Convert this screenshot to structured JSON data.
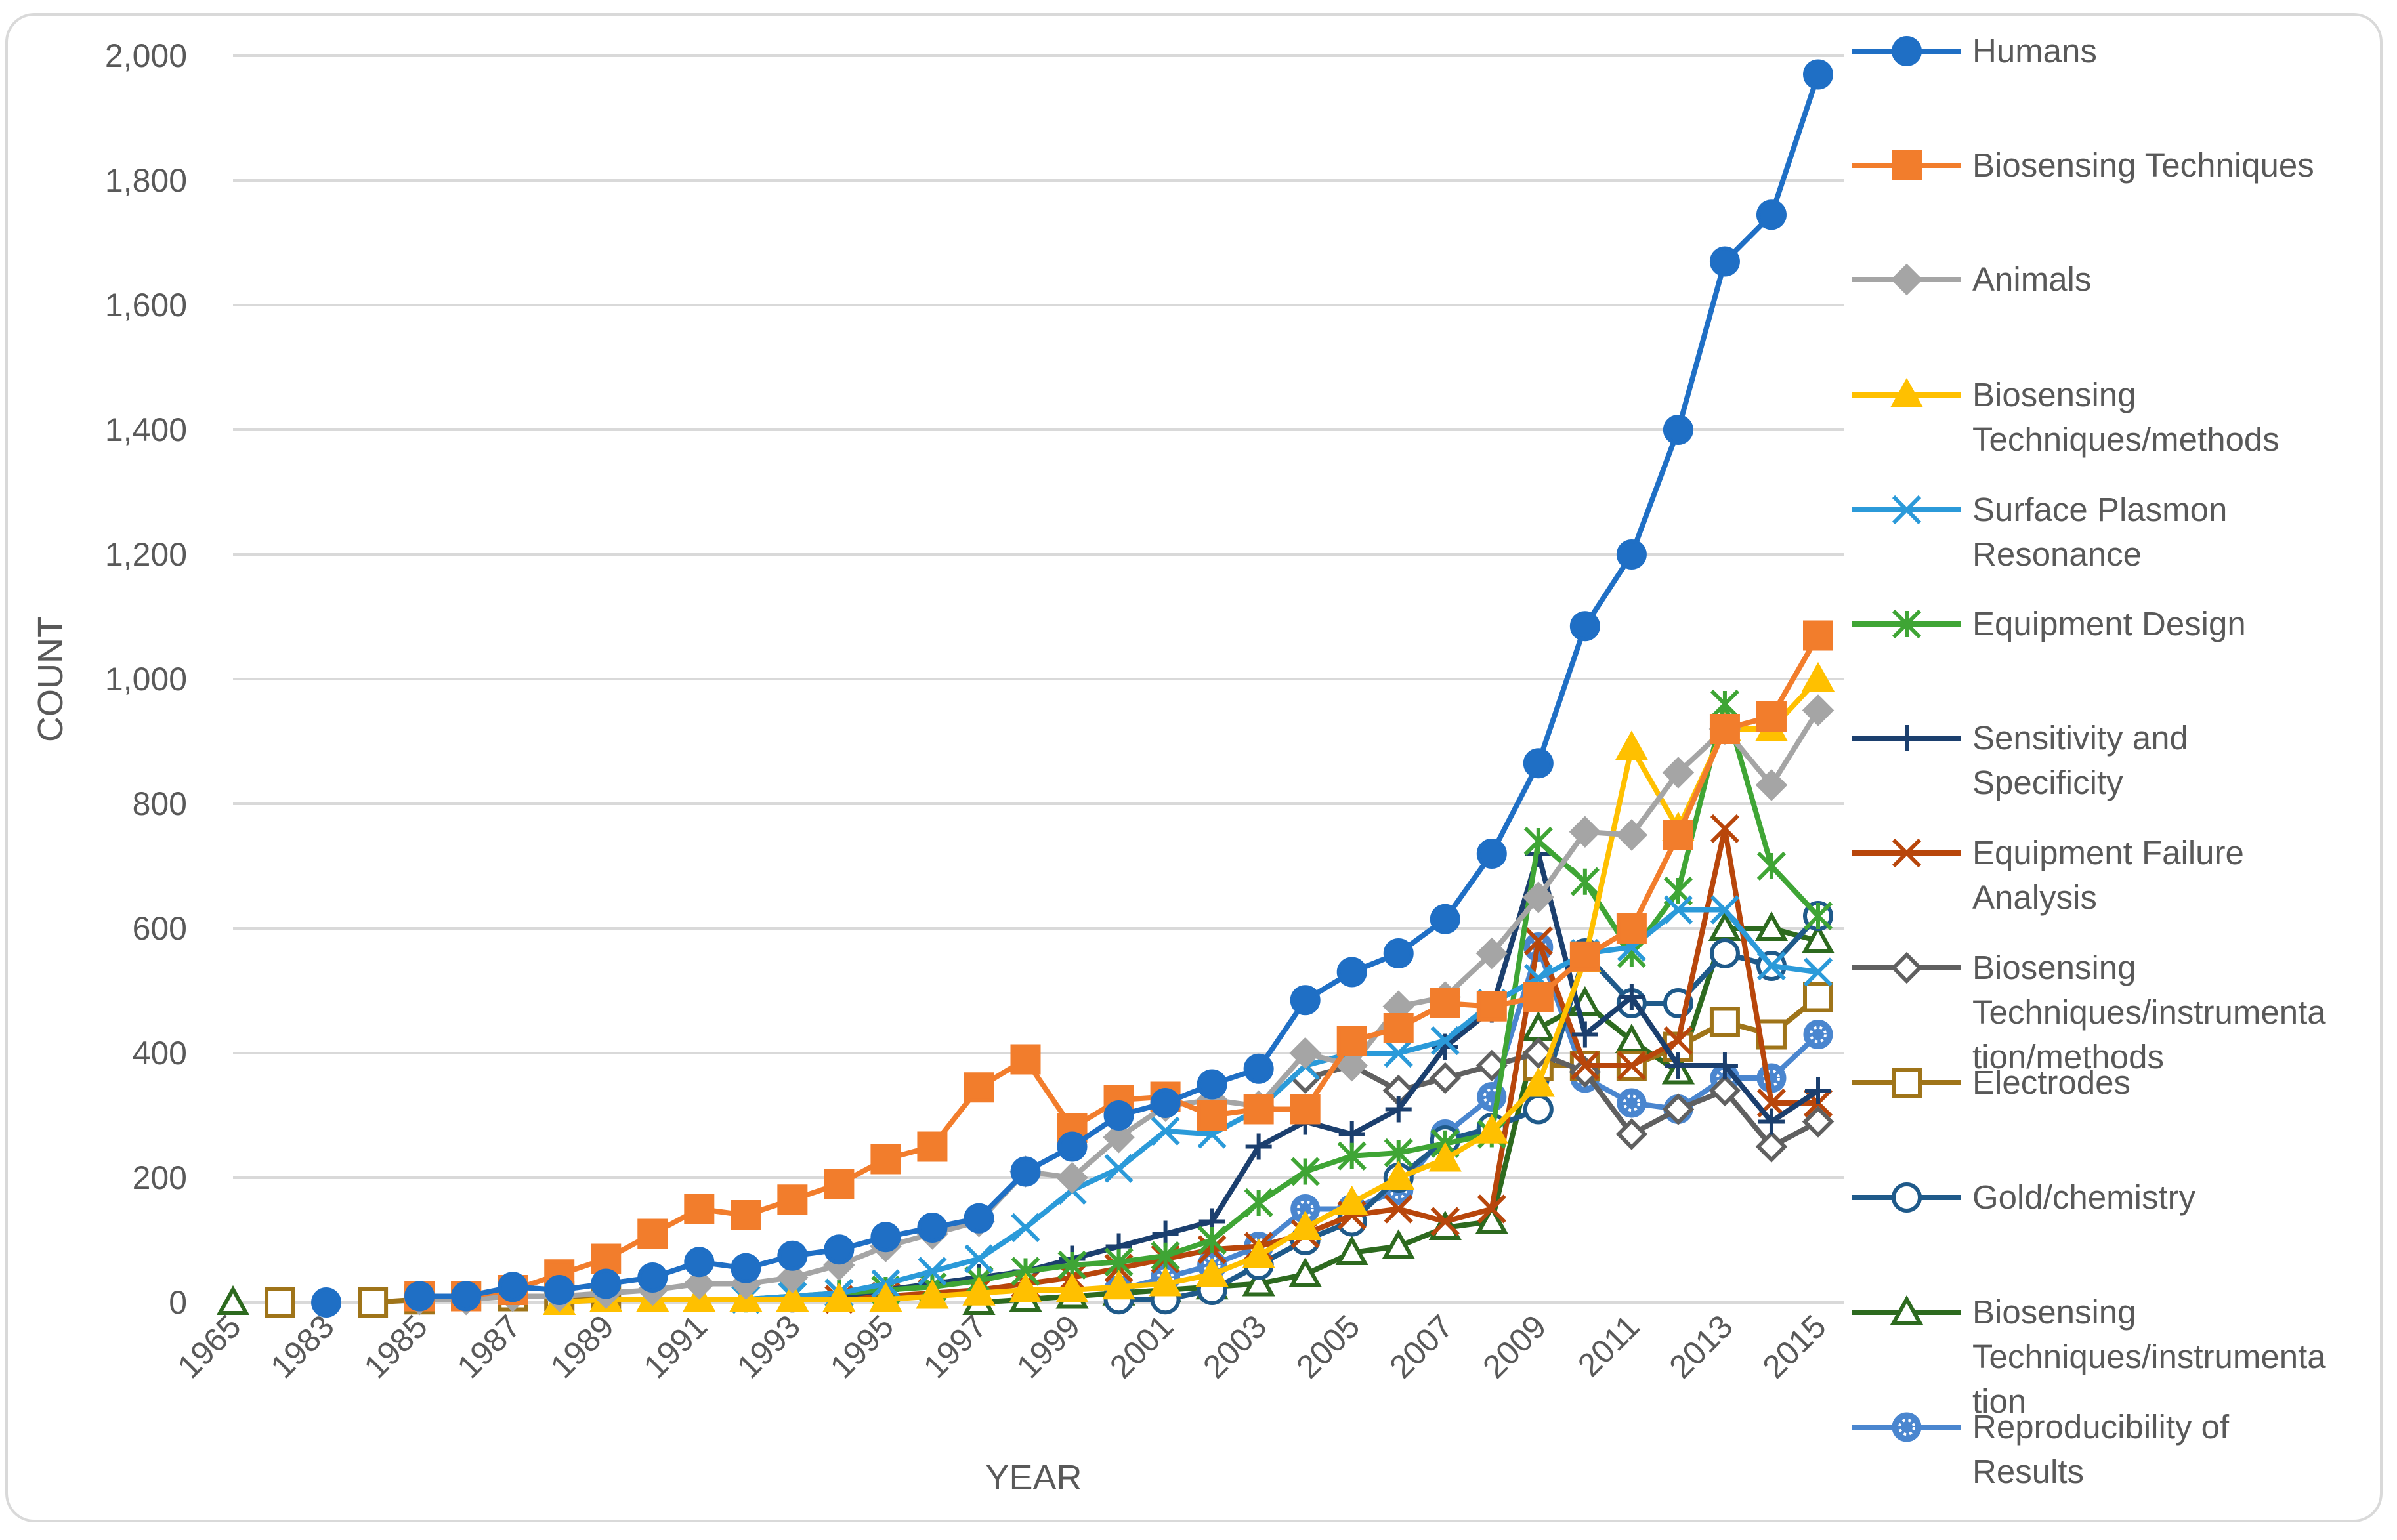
{
  "chart_data": {
    "type": "line",
    "title": "",
    "xlabel": "YEAR",
    "ylabel": "COUNT",
    "ylim": [
      0,
      2000
    ],
    "yticks": [
      0,
      200,
      400,
      600,
      800,
      1000,
      1200,
      1400,
      1600,
      1800,
      2000
    ],
    "ytick_labels": [
      "0",
      "200",
      "400",
      "600",
      "800",
      "1,000",
      "1,200",
      "1,400",
      "1,600",
      "1,800",
      "2,000"
    ],
    "x": [
      "1965",
      "1982",
      "1983",
      "1984",
      "1985",
      "1986",
      "1987",
      "1988",
      "1989",
      "1990",
      "1991",
      "1992",
      "1993",
      "1994",
      "1995",
      "1996",
      "1997",
      "1998",
      "1999",
      "2000",
      "2001",
      "2002",
      "2003",
      "2004",
      "2005",
      "2006",
      "2007",
      "2008",
      "2009",
      "2010",
      "2011",
      "2012",
      "2013",
      "2014",
      "2015"
    ],
    "x_tick_labels": [
      "1965",
      "1983",
      "1985",
      "1987",
      "1989",
      "1991",
      "1993",
      "1995",
      "1997",
      "1999",
      "2001",
      "2003",
      "2005",
      "2007",
      "2009",
      "2011",
      "2013",
      "2015"
    ],
    "grid": true,
    "legend_position": "right",
    "series": [
      {
        "name": "Humans",
        "color": "#1f6fc5",
        "marker": "circle",
        "filled": true,
        "values": [
          null,
          null,
          0,
          null,
          10,
          10,
          25,
          20,
          30,
          40,
          65,
          55,
          75,
          85,
          105,
          120,
          135,
          210,
          250,
          300,
          320,
          350,
          375,
          485,
          530,
          560,
          615,
          720,
          865,
          1085,
          1200,
          1400,
          1670,
          1745,
          1970
        ]
      },
      {
        "name": "Biosensing Techniques",
        "color": "#f27d2c",
        "marker": "square",
        "filled": true,
        "values": [
          null,
          null,
          null,
          null,
          10,
          10,
          20,
          45,
          70,
          110,
          150,
          140,
          165,
          190,
          230,
          250,
          345,
          390,
          280,
          325,
          330,
          300,
          310,
          310,
          420,
          440,
          480,
          475,
          490,
          555,
          600,
          750,
          920,
          940,
          1070
        ]
      },
      {
        "name": "Animals",
        "color": "#a5a5a5",
        "marker": "diamond",
        "filled": true,
        "values": [
          null,
          null,
          null,
          null,
          5,
          5,
          10,
          10,
          15,
          20,
          30,
          30,
          40,
          60,
          90,
          110,
          130,
          210,
          200,
          265,
          315,
          325,
          315,
          400,
          380,
          475,
          490,
          560,
          650,
          755,
          750,
          850,
          920,
          830,
          950
        ]
      },
      {
        "name": "Biosensing Techniques/methods",
        "color": "#ffc000",
        "marker": "triangle",
        "filled": true,
        "values": [
          null,
          null,
          null,
          null,
          null,
          null,
          null,
          0,
          5,
          5,
          5,
          5,
          5,
          5,
          5,
          10,
          15,
          20,
          20,
          25,
          30,
          45,
          75,
          120,
          160,
          200,
          230,
          275,
          350,
          550,
          890,
          760,
          920,
          920,
          1000
        ]
      },
      {
        "name": "Surface Plasmon Resonance",
        "color": "#2b9ad9",
        "marker": "x",
        "values": [
          null,
          null,
          null,
          null,
          null,
          null,
          null,
          null,
          null,
          null,
          null,
          5,
          10,
          15,
          30,
          50,
          70,
          120,
          180,
          215,
          275,
          270,
          310,
          380,
          400,
          400,
          420,
          480,
          520,
          560,
          570,
          630,
          630,
          540,
          530
        ]
      },
      {
        "name": "Equipment Design",
        "color": "#3fa535",
        "marker": "star",
        "values": [
          null,
          null,
          null,
          null,
          null,
          null,
          null,
          null,
          null,
          null,
          null,
          5,
          10,
          15,
          20,
          25,
          35,
          50,
          60,
          65,
          75,
          100,
          160,
          210,
          235,
          240,
          255,
          270,
          740,
          675,
          560,
          660,
          960,
          700,
          620
        ]
      },
      {
        "name": "Sensitivity and Specificity",
        "color": "#1b3f6e",
        "marker": "plus",
        "values": [
          null,
          null,
          null,
          null,
          null,
          null,
          null,
          null,
          null,
          null,
          null,
          null,
          5,
          10,
          20,
          30,
          40,
          50,
          70,
          90,
          110,
          130,
          250,
          290,
          270,
          310,
          410,
          470,
          720,
          430,
          490,
          380,
          380,
          290,
          340
        ]
      },
      {
        "name": "Equipment Failure Analysis",
        "color": "#b8460b",
        "marker": "x",
        "values": [
          null,
          null,
          null,
          null,
          null,
          null,
          null,
          null,
          null,
          null,
          null,
          null,
          null,
          5,
          10,
          15,
          20,
          30,
          40,
          55,
          70,
          85,
          90,
          110,
          140,
          150,
          130,
          150,
          580,
          380,
          380,
          420,
          760,
          320,
          320
        ]
      },
      {
        "name": "Biosensing Techniques/instrumentation/methods",
        "color": "#606060",
        "marker": "diamond",
        "filled": false,
        "values": [
          null,
          null,
          null,
          null,
          null,
          null,
          null,
          null,
          null,
          null,
          null,
          null,
          null,
          null,
          null,
          null,
          null,
          null,
          null,
          null,
          null,
          null,
          null,
          360,
          380,
          340,
          360,
          380,
          400,
          370,
          270,
          310,
          340,
          250,
          290
        ]
      },
      {
        "name": "Electrodes",
        "color": "#9f7419",
        "marker": "square",
        "filled": false,
        "values": [
          null,
          0,
          null,
          0,
          5,
          10,
          10,
          10,
          10,
          null,
          null,
          null,
          null,
          null,
          null,
          null,
          null,
          null,
          null,
          null,
          null,
          null,
          null,
          null,
          null,
          null,
          null,
          null,
          380,
          380,
          380,
          410,
          450,
          430,
          490
        ]
      },
      {
        "name": "Gold/chemistry",
        "color": "#1f5a8a",
        "marker": "circle",
        "filled": false,
        "values": [
          null,
          null,
          null,
          null,
          null,
          null,
          null,
          null,
          null,
          null,
          null,
          null,
          null,
          null,
          null,
          null,
          null,
          null,
          null,
          5,
          5,
          20,
          60,
          100,
          130,
          200,
          260,
          280,
          310,
          560,
          480,
          480,
          560,
          540,
          620
        ]
      },
      {
        "name": "Biosensing Techniques/instrumentation",
        "color": "#2d6a1f",
        "marker": "triangle",
        "filled": false,
        "values": [
          0,
          null,
          null,
          null,
          null,
          null,
          null,
          null,
          null,
          null,
          null,
          null,
          null,
          null,
          null,
          null,
          0,
          5,
          10,
          15,
          20,
          25,
          30,
          45,
          80,
          90,
          120,
          130,
          440,
          480,
          420,
          370,
          600,
          600,
          580
        ]
      },
      {
        "name": "Reproducibility of Results",
        "color": "#4a86cf",
        "marker": "dotcircle",
        "filled": true,
        "values": [
          null,
          null,
          null,
          null,
          null,
          null,
          null,
          null,
          null,
          null,
          null,
          null,
          null,
          null,
          null,
          null,
          null,
          null,
          null,
          20,
          40,
          60,
          90,
          150,
          150,
          180,
          270,
          330,
          570,
          360,
          320,
          310,
          360,
          360,
          430
        ]
      }
    ]
  }
}
